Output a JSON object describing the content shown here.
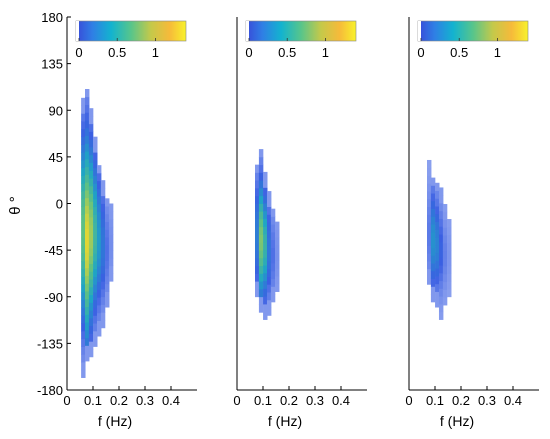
{
  "chart_data": [
    {
      "type": "heatmap",
      "panel": "left",
      "xlabel": "f (Hz)",
      "ylabel": "θ °",
      "xlim": [
        0.0,
        0.5
      ],
      "ylim": [
        -180,
        180
      ],
      "xticks": [
        "0",
        "0.1",
        "0.2",
        "0.3",
        "0.4"
      ],
      "xtick_values": [
        0.0,
        0.1,
        0.2,
        0.3,
        0.4
      ],
      "yticks": [
        "180",
        "135",
        "90",
        "45",
        "0",
        "-45",
        "-90",
        "-135",
        "-180"
      ],
      "ytick_values": [
        180,
        135,
        90,
        45,
        0,
        -45,
        -90,
        -135,
        -180
      ],
      "colorbar": {
        "ticks": [
          "0",
          "0.5",
          "1"
        ],
        "tick_values": [
          0,
          0.5,
          1
        ],
        "range": [
          0,
          1.4
        ]
      },
      "columns": [
        {
          "f": 0.062,
          "from": -168,
          "to": 98,
          "peak": -25,
          "width": 55,
          "max": 0.9
        },
        {
          "f": 0.077,
          "from": -152,
          "to": 108,
          "peak": -35,
          "width": 60,
          "max": 1.3
        },
        {
          "f": 0.092,
          "from": -148,
          "to": 85,
          "peak": -30,
          "width": 52,
          "max": 1.1
        },
        {
          "f": 0.108,
          "from": -138,
          "to": 60,
          "peak": -30,
          "width": 45,
          "max": 0.75
        },
        {
          "f": 0.123,
          "from": -128,
          "to": 35,
          "peak": -35,
          "width": 40,
          "max": 0.5
        },
        {
          "f": 0.138,
          "from": -120,
          "to": 18,
          "peak": -40,
          "width": 35,
          "max": 0.32
        },
        {
          "f": 0.154,
          "from": -100,
          "to": 5,
          "peak": -45,
          "width": 30,
          "max": 0.15
        },
        {
          "f": 0.169,
          "from": -75,
          "to": -5,
          "peak": -40,
          "width": 28,
          "max": 0.06
        }
      ]
    },
    {
      "type": "heatmap",
      "panel": "middle",
      "xlabel": "f (Hz)",
      "xlim": [
        0.0,
        0.5
      ],
      "ylim": [
        -180,
        180
      ],
      "xticks": [
        "0",
        "0.1",
        "0.2",
        "0.3",
        "0.4"
      ],
      "xtick_values": [
        0.0,
        0.1,
        0.2,
        0.3,
        0.4
      ],
      "colorbar": {
        "ticks": [
          "0",
          "0.5",
          "1"
        ],
        "tick_values": [
          0,
          0.5,
          1
        ],
        "range": [
          0,
          1.4
        ]
      },
      "columns": [
        {
          "f": 0.077,
          "from": -90,
          "to": 35,
          "peak": -30,
          "width": 35,
          "max": 0.35
        },
        {
          "f": 0.092,
          "from": -105,
          "to": 50,
          "peak": -35,
          "width": 35,
          "max": 1.0
        },
        {
          "f": 0.108,
          "from": -112,
          "to": 25,
          "peak": -40,
          "width": 32,
          "max": 0.7
        },
        {
          "f": 0.123,
          "from": -108,
          "to": 5,
          "peak": -45,
          "width": 30,
          "max": 0.32
        },
        {
          "f": 0.138,
          "from": -95,
          "to": -5,
          "peak": -50,
          "width": 28,
          "max": 0.15
        },
        {
          "f": 0.154,
          "from": -85,
          "to": -20,
          "peak": -50,
          "width": 25,
          "max": 0.05
        }
      ]
    },
    {
      "type": "heatmap",
      "panel": "right",
      "xlabel": "f (Hz)",
      "xlim": [
        0.0,
        0.5
      ],
      "ylim": [
        -180,
        180
      ],
      "xticks": [
        "0",
        "0.1",
        "0.2",
        "0.3",
        "0.4"
      ],
      "xtick_values": [
        0.0,
        0.1,
        0.2,
        0.3,
        0.4
      ],
      "colorbar": {
        "ticks": [
          "0",
          "0.5",
          "1"
        ],
        "tick_values": [
          0,
          0.5,
          1
        ],
        "range": [
          0,
          1.4
        ]
      },
      "columns": [
        {
          "f": 0.077,
          "from": -78,
          "to": 38,
          "peak": -30,
          "width": 30,
          "max": 0.12
        },
        {
          "f": 0.092,
          "from": -95,
          "to": 25,
          "peak": -35,
          "width": 30,
          "max": 0.45
        },
        {
          "f": 0.108,
          "from": -100,
          "to": 18,
          "peak": -40,
          "width": 28,
          "max": 0.38
        },
        {
          "f": 0.123,
          "from": -112,
          "to": 10,
          "peak": -45,
          "width": 28,
          "max": 0.22
        },
        {
          "f": 0.138,
          "from": -98,
          "to": -5,
          "peak": -50,
          "width": 25,
          "max": 0.1
        },
        {
          "f": 0.154,
          "from": -90,
          "to": -20,
          "peak": -50,
          "width": 22,
          "max": 0.04
        }
      ]
    }
  ],
  "colors": {
    "low": "#8da2ef",
    "blue": "#3a5fe2",
    "cyan": "#1ea6c4",
    "green": "#5ec084",
    "yellow": "#f3d92a",
    "axis": "#000000",
    "background": "#ffffff"
  }
}
